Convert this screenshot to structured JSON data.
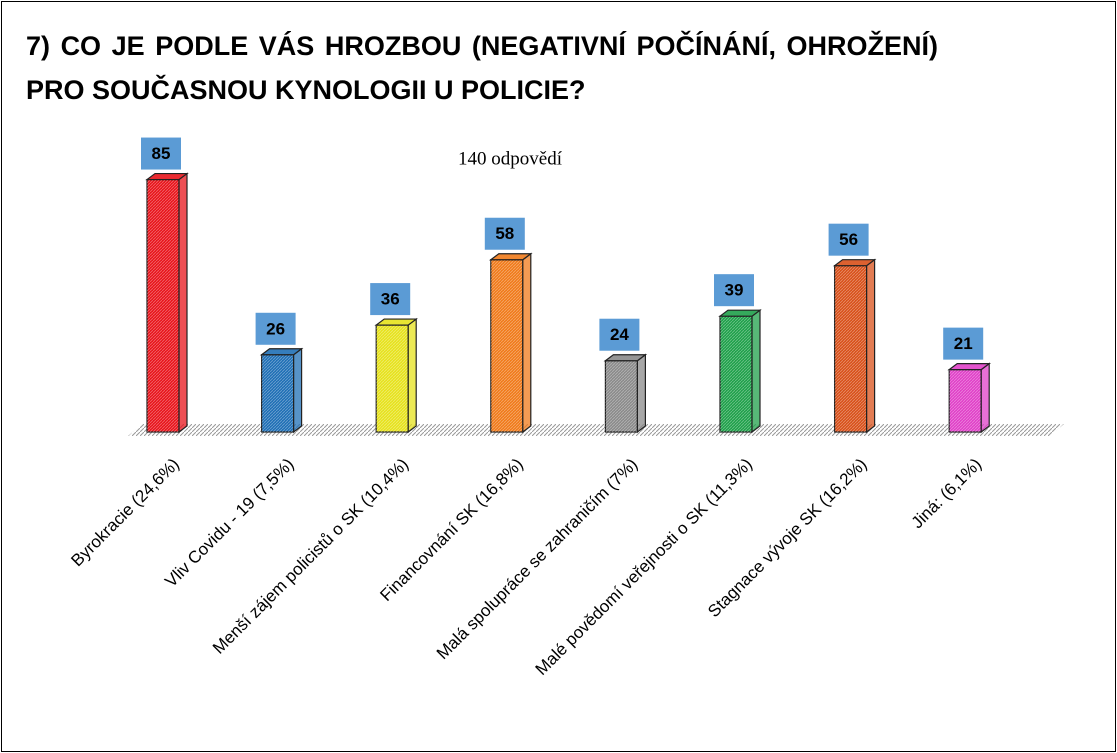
{
  "chart_data": {
    "type": "bar",
    "title": "7) CO JE PODLE VÁS HROZBOU (NEGATIVNÍ POČÍNÁNÍ, OHROŽENÍ) PRO SOUČASNOU KYNOLOGII U POLICIE?",
    "subtitle": "140 odpovědí",
    "categories": [
      "Byrokracie (24,6%)",
      "Vliv Covidu - 19 (7,5%)",
      "Menší zájem policistů o SK (10,4%)",
      "Financovnání  SK (16,8%)",
      "Malá spolupráce se zahraničím (7%)",
      "Malé povědomí veřejnosti o SK (11,3%)",
      "Stagnace vývoje SK (16,2%)",
      "Jiná: (6,1%)"
    ],
    "values": [
      85,
      26,
      36,
      58,
      24,
      39,
      56,
      21
    ],
    "colors": [
      "#e8141b",
      "#1f6fb5",
      "#e6e21c",
      "#f07a1a",
      "#8a8a8a",
      "#1fa04a",
      "#d8501a",
      "#e040c8"
    ],
    "grid": false
  }
}
